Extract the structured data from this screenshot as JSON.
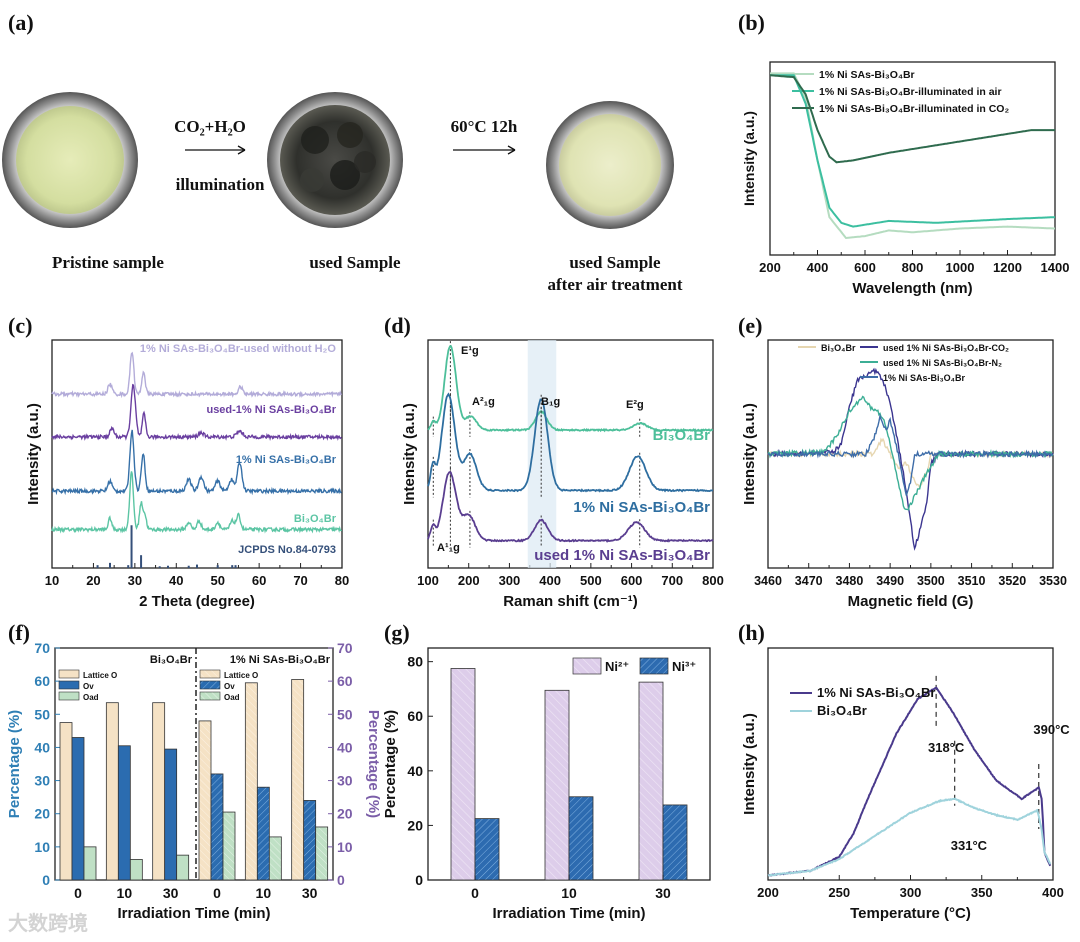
{
  "panel_labels": [
    "(a)",
    "(b)",
    "(c)",
    "(d)",
    "(e)",
    "(f)",
    "(g)",
    "(h)"
  ],
  "panel_a": {
    "samples": [
      "Pristine sample",
      "used Sample",
      "used Sample"
    ],
    "sample3_line2": "after air treatment",
    "arrow1_top": "CO₂+H₂O",
    "arrow1_bottom": "illumination",
    "arrow2_top": "60°C 12h"
  },
  "watermark": "大数跨境",
  "chart_data": [
    {
      "id": "uv-vis",
      "type": "line",
      "xlabel": "Wavelength (nm)",
      "ylabel": "Intensity (a.u.)",
      "xlim": [
        200,
        1400
      ],
      "ylim": [
        0,
        1.02
      ],
      "xticks": [
        "200",
        "400",
        "600",
        "800",
        "1000",
        "1200",
        "1400"
      ],
      "series": [
        {
          "name": "1% Ni SAs-Bi₃O₄Br",
          "color": "#b5dcc0",
          "points": [
            [
              200,
              0.96
            ],
            [
              300,
              0.96
            ],
            [
              350,
              0.83
            ],
            [
              400,
              0.5
            ],
            [
              450,
              0.2
            ],
            [
              520,
              0.09
            ],
            [
              600,
              0.1
            ],
            [
              700,
              0.13
            ],
            [
              800,
              0.12
            ],
            [
              1000,
              0.14
            ],
            [
              1200,
              0.15
            ],
            [
              1400,
              0.14
            ]
          ]
        },
        {
          "name": "1% Ni SAs-Bi₃O₄Br-illuminated in air",
          "color": "#3cbfa0",
          "points": [
            [
              200,
              0.95
            ],
            [
              300,
              0.95
            ],
            [
              350,
              0.8
            ],
            [
              400,
              0.5
            ],
            [
              450,
              0.25
            ],
            [
              500,
              0.17
            ],
            [
              550,
              0.15
            ],
            [
              700,
              0.18
            ],
            [
              900,
              0.17
            ],
            [
              1200,
              0.19
            ],
            [
              1400,
              0.2
            ]
          ]
        },
        {
          "name": "1% Ni SAs-Bi₃O₄Br-illuminated in CO₂",
          "color": "#2f6b4e",
          "points": [
            [
              200,
              0.95
            ],
            [
              300,
              0.94
            ],
            [
              350,
              0.85
            ],
            [
              400,
              0.66
            ],
            [
              450,
              0.52
            ],
            [
              480,
              0.49
            ],
            [
              550,
              0.5
            ],
            [
              700,
              0.54
            ],
            [
              900,
              0.58
            ],
            [
              1100,
              0.62
            ],
            [
              1300,
              0.66
            ],
            [
              1400,
              0.66
            ]
          ]
        }
      ]
    },
    {
      "id": "xrd",
      "type": "line",
      "xlabel": "2 Theta (degree)",
      "ylabel": "Intensity (a.u.)",
      "xlim": [
        10,
        80
      ],
      "ylim": [
        0,
        8
      ],
      "xticks": [
        "10",
        "20",
        "30",
        "40",
        "50",
        "60",
        "70",
        "80"
      ],
      "reference": {
        "name": "JCPDS No.84-0793",
        "color": "#35507a",
        "sticks": [
          [
            21,
            0.1
          ],
          [
            24,
            0.18
          ],
          [
            28.4,
            0.1
          ],
          [
            29.2,
            1.5
          ],
          [
            31.5,
            0.45
          ],
          [
            36,
            0.06
          ],
          [
            38,
            0.08
          ],
          [
            43,
            0.08
          ],
          [
            45,
            0.12
          ],
          [
            50,
            0.1
          ],
          [
            53.5,
            0.1
          ],
          [
            54.3,
            0.1
          ]
        ]
      },
      "series": [
        {
          "name": "Bi₃O₄Br",
          "color": "#5cc5a4",
          "offset": 1.35,
          "peaks": [
            [
              24,
              0.4,
              0.4
            ],
            [
              29.2,
              2.0,
              0.45
            ],
            [
              31.5,
              0.9,
              0.4
            ],
            [
              32.4,
              0.5,
              0.4
            ],
            [
              43,
              0.25,
              0.5
            ],
            [
              45.5,
              0.3,
              0.5
            ],
            [
              50,
              0.25,
              0.5
            ],
            [
              53.5,
              0.3,
              0.5
            ],
            [
              55,
              0.5,
              0.5
            ]
          ]
        },
        {
          "name": "1% Ni SAs-Bi₃O₄Br",
          "color": "#3670a8",
          "offset": 2.7,
          "peaks": [
            [
              24,
              0.35,
              0.5
            ],
            [
              29.3,
              2.1,
              0.5
            ],
            [
              32,
              1.3,
              0.45
            ],
            [
              43,
              0.4,
              0.6
            ],
            [
              46,
              0.5,
              0.6
            ],
            [
              50,
              0.35,
              0.6
            ],
            [
              53.3,
              0.4,
              0.6
            ],
            [
              55.3,
              1.0,
              0.55
            ]
          ]
        },
        {
          "name": "used-1% Ni SAs-Bi₃O₄Br",
          "color": "#6a3fa0",
          "offset": 4.6,
          "peaks": [
            [
              24.5,
              0.3,
              0.5
            ],
            [
              29.6,
              1.8,
              0.55
            ],
            [
              32.2,
              0.8,
              0.4
            ],
            [
              46,
              0.15,
              0.6
            ],
            [
              55.3,
              0.2,
              0.7
            ]
          ]
        },
        {
          "name": "1% Ni SAs-Bi₃O₄Br-used without H₂O",
          "color": "#b3acd9",
          "offset": 6.1,
          "peaks": [
            [
              24,
              0.35,
              0.5
            ],
            [
              29.3,
              1.5,
              0.45
            ],
            [
              32.1,
              0.8,
              0.4
            ],
            [
              55.5,
              0.25,
              0.5
            ]
          ]
        }
      ]
    },
    {
      "id": "raman",
      "type": "line",
      "xlabel": "Raman shift (cm⁻¹)",
      "ylabel": "Intensity (a.u.)",
      "xlim": [
        100,
        800
      ],
      "ylim": [
        0,
        10
      ],
      "xticks": [
        "100",
        "200",
        "300",
        "400",
        "500",
        "600",
        "700",
        "800"
      ],
      "highlight_band": [
        345,
        415
      ],
      "modes": [
        {
          "label": "A¹₁g",
          "x": 113
        },
        {
          "label": "E¹g",
          "x": 155
        },
        {
          "label": "A²₁g",
          "x": 203
        },
        {
          "label": "B₁g",
          "x": 378
        },
        {
          "label": "E²g",
          "x": 620
        }
      ],
      "series": [
        {
          "name": "Bi₃O₄Br",
          "color": "#4dbf9a",
          "offset": 6.05,
          "peaks": [
            [
              113,
              0.35,
              6
            ],
            [
              155,
              3.7,
              14
            ],
            [
              205,
              0.6,
              14
            ],
            [
              378,
              0.8,
              14
            ],
            [
              622,
              0.3,
              16
            ]
          ]
        },
        {
          "name": "1% Ni SAs-Bi₃O₄Br",
          "color": "#2e6ea0",
          "offset": 3.4,
          "peaks": [
            [
              112,
              1.0,
              6
            ],
            [
              150,
              4.2,
              16
            ],
            [
              203,
              1.6,
              16
            ],
            [
              378,
              4.0,
              16
            ],
            [
              615,
              1.5,
              20
            ]
          ]
        },
        {
          "name": "used 1% Ni SAs-Bi₃O₄Br",
          "color": "#5a3e90",
          "offset": 1.2,
          "peaks": [
            [
              112,
              0.6,
              6
            ],
            [
              153,
              3.0,
              16
            ],
            [
              200,
              1.1,
              16
            ],
            [
              378,
              0.9,
              16
            ],
            [
              612,
              0.8,
              20
            ]
          ]
        }
      ]
    },
    {
      "id": "epr",
      "type": "line",
      "xlabel": "Magnetic field (G)",
      "ylabel": "Intensity (a.u.)",
      "xlim": [
        3460,
        3530
      ],
      "ylim": [
        -1.2,
        1.2
      ],
      "xticks": [
        "3460",
        "3470",
        "3480",
        "3490",
        "3500",
        "3510",
        "3520",
        "3530"
      ],
      "series": [
        {
          "name": "Bi₃O₄Br",
          "color": "#e6d6b0",
          "points": [
            [
              3460,
              0
            ],
            [
              3486,
              0
            ],
            [
              3488,
              0.15
            ],
            [
              3490,
              0
            ],
            [
              3492,
              -0.15
            ],
            [
              3494,
              -0.1
            ],
            [
              3497,
              -0.35
            ],
            [
              3499,
              -0.2
            ],
            [
              3500,
              0
            ],
            [
              3530,
              0
            ]
          ]
        },
        {
          "name": "used 1% Ni SAs-Bi₃O₄Br-CO₂",
          "color": "#3b3590",
          "points": [
            [
              3460,
              0
            ],
            [
              3476,
              0.02
            ],
            [
              3478,
              0.1
            ],
            [
              3480,
              0.5
            ],
            [
              3482,
              0.78
            ],
            [
              3484,
              0.82
            ],
            [
              3486,
              0.88
            ],
            [
              3488,
              0.8
            ],
            [
              3490,
              0.55
            ],
            [
              3492,
              0.1
            ],
            [
              3494,
              -0.4
            ],
            [
              3496,
              -1.0
            ],
            [
              3497,
              -0.85
            ],
            [
              3499,
              -0.5
            ],
            [
              3500,
              -0.1
            ],
            [
              3502,
              0
            ],
            [
              3530,
              0
            ]
          ]
        },
        {
          "name": "used 1% Ni SAs-Bi₃O₄Br-N₂",
          "color": "#3cae95",
          "points": [
            [
              3460,
              0
            ],
            [
              3474,
              0.02
            ],
            [
              3477,
              0.2
            ],
            [
              3480,
              0.45
            ],
            [
              3483,
              0.6
            ],
            [
              3485,
              0.5
            ],
            [
              3487,
              0.45
            ],
            [
              3489,
              0.3
            ],
            [
              3491,
              -0.1
            ],
            [
              3493,
              -0.5
            ],
            [
              3494,
              -0.6
            ],
            [
              3496,
              -0.45
            ],
            [
              3499,
              -0.2
            ],
            [
              3502,
              0
            ],
            [
              3530,
              0
            ]
          ]
        },
        {
          "name": "1% Ni SAs-Bi₃O₄Br",
          "color": "#3d6ca8",
          "points": [
            [
              3460,
              0
            ],
            [
              3484,
              0
            ],
            [
              3486,
              0.15
            ],
            [
              3487.5,
              0.4
            ],
            [
              3489,
              0.25
            ],
            [
              3490,
              0.35
            ],
            [
              3492,
              0
            ],
            [
              3494,
              -0.45
            ],
            [
              3495,
              -0.3
            ],
            [
              3496,
              0
            ],
            [
              3530,
              0
            ]
          ]
        }
      ]
    },
    {
      "id": "o1s-fractions",
      "type": "bar",
      "xlabel": "Irradiation Time (min)",
      "ylabel": "Percentage (%)",
      "ylabel_right": "Percentage (%)",
      "ylim": [
        0,
        70
      ],
      "yticks": [
        "0",
        "10",
        "20",
        "30",
        "40",
        "50",
        "60",
        "70"
      ],
      "categories": [
        "0",
        "10",
        "30",
        "0",
        "10",
        "30"
      ],
      "group_titles": [
        "Bi₃O₄Br",
        "1% Ni SAs-Bi₃O₄Br"
      ],
      "left_axis_color": "#2f7fb5",
      "right_axis_color": "#7b5ea8",
      "series": [
        {
          "name": "Lattice O",
          "color": "#f5e2c5",
          "values": [
            47.5,
            53.5,
            53.5,
            48,
            59.5,
            60.5
          ]
        },
        {
          "name": "Ov",
          "color": "#2b6cb0",
          "values": [
            43,
            40.5,
            39.5,
            32,
            28,
            24
          ]
        },
        {
          "name": "Oad",
          "color": "#bfe0c5",
          "values": [
            10,
            6.2,
            7.5,
            20.5,
            13,
            16
          ]
        }
      ]
    },
    {
      "id": "ni-valence",
      "type": "bar",
      "xlabel": "Irradiation Time (min)",
      "ylabel": "Percentage (%)",
      "ylim": [
        0,
        85
      ],
      "yticks": [
        "0",
        "20",
        "40",
        "60",
        "80"
      ],
      "categories": [
        "0",
        "10",
        "30"
      ],
      "series": [
        {
          "name": "Ni²⁺",
          "color": "#ddcdea",
          "values": [
            77.5,
            69.5,
            72.5
          ]
        },
        {
          "name": "Ni³⁺",
          "color": "#2d6bb0",
          "values": [
            22.5,
            30.5,
            27.5
          ]
        }
      ]
    },
    {
      "id": "co2-tpd",
      "type": "line",
      "xlabel": "Temperature (°C)",
      "ylabel": "Intensity (a.u.)",
      "xlim": [
        200,
        400
      ],
      "ylim": [
        0,
        1
      ],
      "xticks": [
        "200",
        "250",
        "300",
        "350",
        "400"
      ],
      "annotations": [
        {
          "label": "318°C",
          "x": 318
        },
        {
          "label": "331°C",
          "x": 331
        },
        {
          "label": "390°C",
          "x": 390
        }
      ],
      "series": [
        {
          "name": "1% Ni SAs-Bi₃O₄Br",
          "color": "#4a3a8c",
          "points": [
            [
              200,
              0.02
            ],
            [
              230,
              0.04
            ],
            [
              250,
              0.1
            ],
            [
              260,
              0.2
            ],
            [
              270,
              0.35
            ],
            [
              290,
              0.63
            ],
            [
              305,
              0.78
            ],
            [
              318,
              0.83
            ],
            [
              330,
              0.72
            ],
            [
              345,
              0.56
            ],
            [
              360,
              0.43
            ],
            [
              378,
              0.35
            ],
            [
              388,
              0.39
            ],
            [
              390,
              0.4
            ],
            [
              392,
              0.35
            ],
            [
              393,
              0.25
            ],
            [
              394,
              0.12
            ],
            [
              398,
              0.06
            ]
          ]
        },
        {
          "name": "Bi₃O₄Br",
          "color": "#9fd3dc",
          "points": [
            [
              200,
              0.02
            ],
            [
              230,
              0.04
            ],
            [
              250,
              0.09
            ],
            [
              280,
              0.21
            ],
            [
              300,
              0.29
            ],
            [
              320,
              0.34
            ],
            [
              331,
              0.35
            ],
            [
              345,
              0.31
            ],
            [
              360,
              0.28
            ],
            [
              375,
              0.26
            ],
            [
              389,
              0.3
            ],
            [
              392,
              0.22
            ],
            [
              394,
              0.12
            ],
            [
              398,
              0.07
            ]
          ]
        }
      ]
    }
  ]
}
